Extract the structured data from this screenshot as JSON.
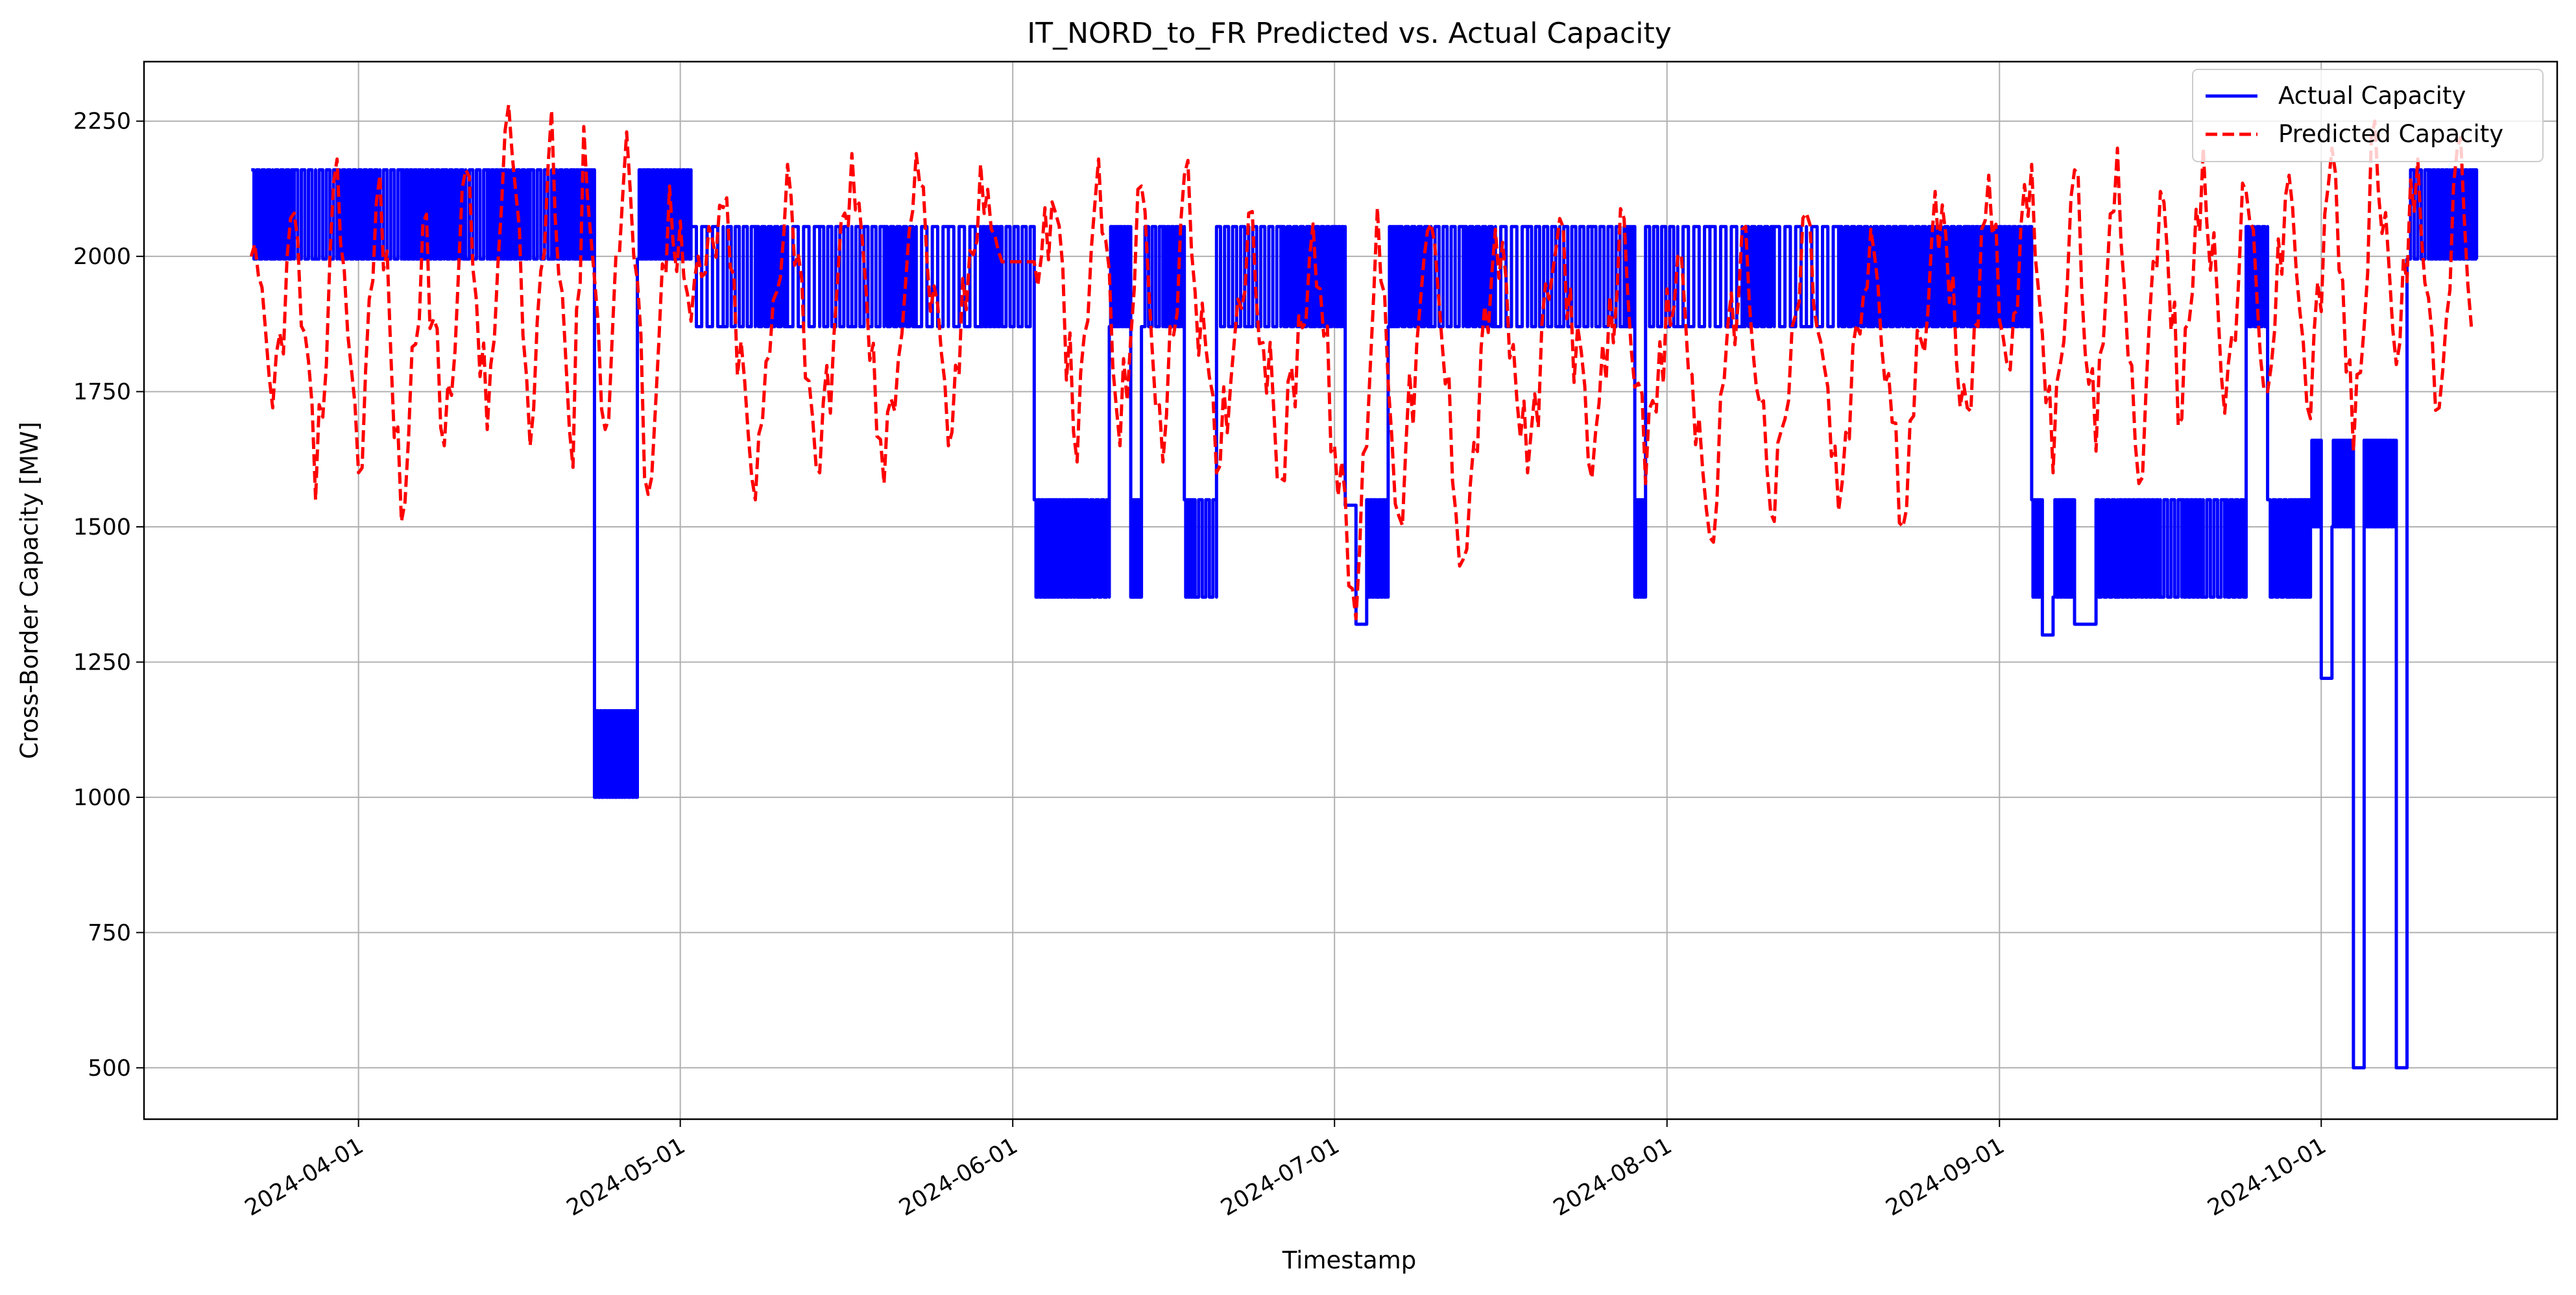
{
  "chart_data": {
    "type": "line",
    "title": "IT_NORD_to_FR Predicted vs. Actual Capacity",
    "xlabel": "Timestamp",
    "ylabel": "Cross-Border Capacity [MW]",
    "xlim": [
      "2024-03-12",
      "2024-10-23"
    ],
    "ylim": [
      405,
      2360
    ],
    "y_ticks": [
      500,
      750,
      1000,
      1250,
      1500,
      1750,
      2000,
      2250
    ],
    "x_ticks": [
      "2024-04-01",
      "2024-05-01",
      "2024-06-01",
      "2024-07-01",
      "2024-08-01",
      "2024-09-01",
      "2024-10-01"
    ],
    "grid": true,
    "legend_position": "top-right",
    "series": [
      {
        "name": "Actual Capacity",
        "color": "#0000ff",
        "style": "solid",
        "x": [
          "2024-03-22",
          "2024-03-24",
          "2024-03-26",
          "2024-03-28",
          "2024-03-30",
          "2024-04-01",
          "2024-04-03",
          "2024-04-05",
          "2024-04-07",
          "2024-04-09",
          "2024-04-11",
          "2024-04-13",
          "2024-04-15",
          "2024-04-17",
          "2024-04-19",
          "2024-04-21",
          "2024-04-22",
          "2024-04-23",
          "2024-04-24",
          "2024-04-25",
          "2024-04-26",
          "2024-04-27",
          "2024-04-28",
          "2024-04-30",
          "2024-05-02",
          "2024-05-05",
          "2024-05-08",
          "2024-05-11",
          "2024-05-14",
          "2024-05-17",
          "2024-05-20",
          "2024-05-23",
          "2024-05-26",
          "2024-05-29",
          "2024-05-31",
          "2024-06-03",
          "2024-06-04",
          "2024-06-05",
          "2024-06-06",
          "2024-06-07",
          "2024-06-08",
          "2024-06-10",
          "2024-06-11",
          "2024-06-12",
          "2024-06-13",
          "2024-06-15",
          "2024-06-17",
          "2024-06-18",
          "2024-06-20",
          "2024-06-23",
          "2024-06-26",
          "2024-06-29",
          "2024-07-01",
          "2024-07-02",
          "2024-07-03",
          "2024-07-04",
          "2024-07-05",
          "2024-07-06",
          "2024-07-07",
          "2024-07-10",
          "2024-07-13",
          "2024-07-16",
          "2024-07-19",
          "2024-07-22",
          "2024-07-25",
          "2024-07-28",
          "2024-07-29",
          "2024-07-30",
          "2024-08-02",
          "2024-08-05",
          "2024-08-08",
          "2024-08-11",
          "2024-08-14",
          "2024-08-17",
          "2024-08-20",
          "2024-08-23",
          "2024-08-26",
          "2024-08-29",
          "2024-08-31",
          "2024-09-02",
          "2024-09-04",
          "2024-09-05",
          "2024-09-06",
          "2024-09-07",
          "2024-09-08",
          "2024-09-10",
          "2024-09-12",
          "2024-09-14",
          "2024-09-16",
          "2024-09-18",
          "2024-09-20",
          "2024-09-22",
          "2024-09-24",
          "2024-09-26",
          "2024-09-28",
          "2024-09-29",
          "2024-09-30",
          "2024-10-01",
          "2024-10-02",
          "2024-10-03",
          "2024-10-04",
          "2024-10-05",
          "2024-10-06",
          "2024-10-07",
          "2024-10-08",
          "2024-10-09",
          "2024-10-11",
          "2024-10-13",
          "2024-10-15"
        ],
        "y": [
          2160,
          1995,
          2160,
          1995,
          2160,
          2160,
          1995,
          2160,
          1995,
          2160,
          1995,
          2160,
          1995,
          2160,
          1995,
          2160,
          1995,
          1000,
          1160,
          1000,
          1160,
          1995,
          2160,
          2160,
          2055,
          1870,
          2055,
          1870,
          2055,
          1870,
          2055,
          1870,
          2055,
          1870,
          1870,
          1550,
          1370,
          1550,
          1370,
          1550,
          1370,
          1870,
          2055,
          1370,
          1870,
          2055,
          1550,
          1370,
          2055,
          1870,
          2055,
          1870,
          2055,
          1540,
          1320,
          1550,
          1370,
          1870,
          2055,
          1870,
          2055,
          1870,
          2055,
          1870,
          2055,
          1870,
          1370,
          2055,
          1870,
          2055,
          1870,
          2055,
          1870,
          2055,
          1870,
          2055,
          1870,
          2055,
          1870,
          1870,
          1550,
          1300,
          1370,
          1550,
          1320,
          1550,
          1370,
          1550,
          1370,
          1550,
          1370,
          1550,
          2055,
          1550,
          1370,
          1550,
          1500,
          1220,
          1500,
          1660,
          500,
          1660,
          1500,
          1660,
          500,
          1995,
          2160,
          1995,
          1995
        ]
      },
      {
        "name": "Predicted Capacity",
        "color": "#ff0000",
        "style": "dashed",
        "x": [
          "2024-03-22",
          "2024-03-24",
          "2024-03-26",
          "2024-03-28",
          "2024-03-30",
          "2024-04-01",
          "2024-04-03",
          "2024-04-05",
          "2024-04-07",
          "2024-04-09",
          "2024-04-11",
          "2024-04-13",
          "2024-04-15",
          "2024-04-17",
          "2024-04-19",
          "2024-04-21",
          "2024-04-22",
          "2024-04-24",
          "2024-04-26",
          "2024-04-28",
          "2024-04-30",
          "2024-05-02",
          "2024-05-05",
          "2024-05-08",
          "2024-05-11",
          "2024-05-14",
          "2024-05-17",
          "2024-05-20",
          "2024-05-23",
          "2024-05-26",
          "2024-05-29",
          "2024-05-31",
          "2024-06-03",
          "2024-06-05",
          "2024-06-07",
          "2024-06-09",
          "2024-06-11",
          "2024-06-13",
          "2024-06-15",
          "2024-06-17",
          "2024-06-20",
          "2024-06-23",
          "2024-06-26",
          "2024-06-29",
          "2024-07-01",
          "2024-07-03",
          "2024-07-05",
          "2024-07-07",
          "2024-07-10",
          "2024-07-13",
          "2024-07-16",
          "2024-07-19",
          "2024-07-22",
          "2024-07-25",
          "2024-07-28",
          "2024-07-30",
          "2024-08-02",
          "2024-08-05",
          "2024-08-08",
          "2024-08-11",
          "2024-08-14",
          "2024-08-17",
          "2024-08-20",
          "2024-08-23",
          "2024-08-26",
          "2024-08-29",
          "2024-08-31",
          "2024-09-02",
          "2024-09-04",
          "2024-09-06",
          "2024-09-08",
          "2024-09-10",
          "2024-09-12",
          "2024-09-14",
          "2024-09-16",
          "2024-09-18",
          "2024-09-20",
          "2024-09-22",
          "2024-09-24",
          "2024-09-26",
          "2024-09-28",
          "2024-09-30",
          "2024-10-02",
          "2024-10-04",
          "2024-10-06",
          "2024-10-08",
          "2024-10-10",
          "2024-10-12",
          "2024-10-14",
          "2024-10-15"
        ],
        "y": [
          2000,
          1720,
          2080,
          1550,
          2180,
          1600,
          2150,
          1510,
          2060,
          1650,
          2160,
          1680,
          2280,
          1650,
          2270,
          1610,
          2240,
          1680,
          2230,
          1560,
          2130,
          1880,
          2090,
          1550,
          2170,
          1600,
          2190,
          1580,
          2190,
          1650,
          2170,
          1990,
          1990,
          2080,
          1620,
          2180,
          1650,
          2130,
          1620,
          2150,
          1600,
          2080,
          1590,
          2060,
          1650,
          1330,
          2090,
          1520,
          2060,
          1440,
          2050,
          1600,
          2070,
          1590,
          2070,
          1580,
          2000,
          1480,
          2050,
          1510,
          2080,
          1530,
          2050,
          1500,
          2120,
          1720,
          2150,
          1790,
          2170,
          1600,
          2160,
          1640,
          2200,
          1580,
          2120,
          1700,
          2200,
          1710,
          2120,
          1750,
          2150,
          1700,
          2200,
          1640,
          2250,
          1800,
          2180,
          1720,
          2220,
          1870
        ]
      }
    ]
  }
}
